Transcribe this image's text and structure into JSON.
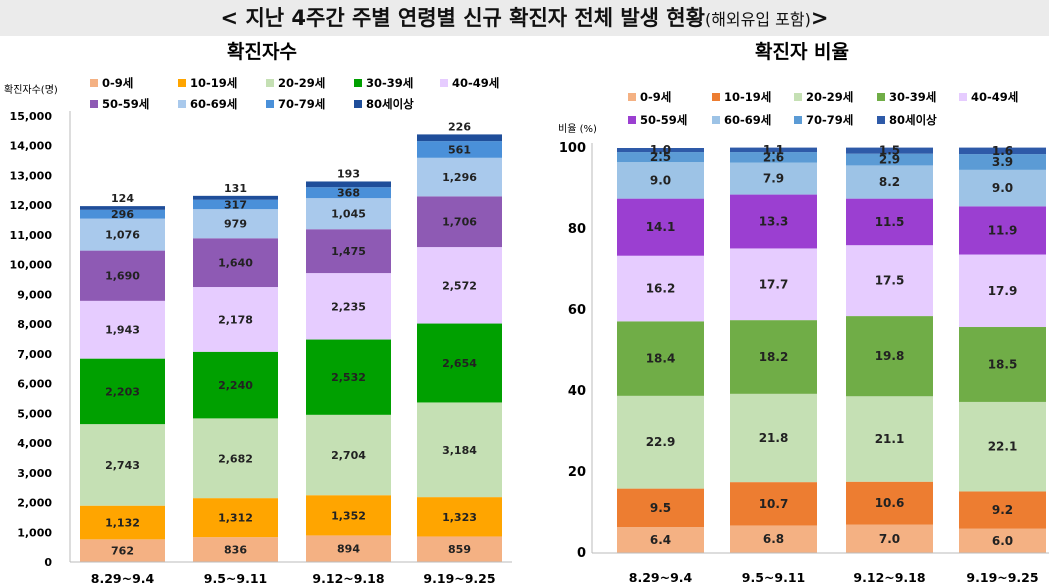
{
  "page_title": {
    "main": "< 지난 4주간 주별 연령별 신규 확진자 전체 발생 현황",
    "sub": "(해외유입 포함)",
    "suffix": ">"
  },
  "chart_data": [
    {
      "type": "bar",
      "stacked": true,
      "title": "확진자수",
      "ylabel": "확진자수(명)",
      "xlabel": "",
      "ylim": [
        0,
        15000
      ],
      "yticks": [
        0,
        1000,
        2000,
        3000,
        4000,
        5000,
        6000,
        7000,
        8000,
        9000,
        10000,
        11000,
        12000,
        13000,
        14000,
        15000
      ],
      "ytick_labels": [
        "0",
        "1,000",
        "2,000",
        "3,000",
        "4,000",
        "5,000",
        "6,000",
        "7,000",
        "8,000",
        "9,000",
        "10,000",
        "11,000",
        "12,000",
        "13,000",
        "14,000",
        "15,000"
      ],
      "grid": false,
      "legend_position": "top",
      "categories": [
        "8.29~9.4",
        "9.5~9.11",
        "9.12~9.18",
        "9.19~9.25"
      ],
      "series": [
        {
          "name": "0-9세",
          "color": "#f4b183",
          "values": [
            762,
            836,
            894,
            859
          ],
          "labels": [
            "762",
            "836",
            "894",
            "859"
          ]
        },
        {
          "name": "10-19세",
          "color": "#ffa500",
          "values": [
            1132,
            1312,
            1352,
            1323
          ],
          "labels": [
            "1,132",
            "1,312",
            "1,352",
            "1,323"
          ]
        },
        {
          "name": "20-29세",
          "color": "#c5e0b4",
          "values": [
            2743,
            2682,
            2704,
            3184
          ],
          "labels": [
            "2,743",
            "2,682",
            "2,704",
            "3,184"
          ]
        },
        {
          "name": "30-39세",
          "color": "#00a000",
          "values": [
            2203,
            2240,
            2532,
            2654
          ],
          "labels": [
            "2,203",
            "2,240",
            "2,532",
            "2,654"
          ]
        },
        {
          "name": "40-49세",
          "color": "#e6ccff",
          "values": [
            1943,
            2178,
            2235,
            2572
          ],
          "labels": [
            "1,943",
            "2,178",
            "2,235",
            "2,572"
          ]
        },
        {
          "name": "50-59세",
          "color": "#8e5ab4",
          "values": [
            1690,
            1640,
            1475,
            1706
          ],
          "labels": [
            "1,690",
            "1,640",
            "1,475",
            "1,706"
          ]
        },
        {
          "name": "60-69세",
          "color": "#a9c9ec",
          "values": [
            1076,
            979,
            1045,
            1296
          ],
          "labels": [
            "1,076",
            "979",
            "1,045",
            "1,296"
          ]
        },
        {
          "name": "70-79세",
          "color": "#4a90d9",
          "values": [
            296,
            317,
            368,
            561
          ],
          "labels": [
            "296",
            "317",
            "368",
            "561"
          ]
        },
        {
          "name": "80세이상",
          "color": "#1f4e9a",
          "values": [
            124,
            131,
            193,
            226
          ],
          "labels": [
            "124",
            "131",
            "193",
            "226"
          ]
        }
      ]
    },
    {
      "type": "bar",
      "stacked": true,
      "title": "확진자 비율",
      "ylabel": "비율 (%)",
      "xlabel": "",
      "ylim": [
        0,
        100
      ],
      "yticks": [
        0,
        20,
        40,
        60,
        80,
        100
      ],
      "ytick_labels": [
        "0",
        "20",
        "40",
        "60",
        "80",
        "100"
      ],
      "grid": false,
      "legend_position": "top",
      "categories": [
        "8.29~9.4",
        "9.5~9.11",
        "9.12~9.18",
        "9.19~9.25"
      ],
      "series": [
        {
          "name": "0-9세",
          "color": "#f4b183",
          "values": [
            6.4,
            6.8,
            7.0,
            6.0
          ],
          "labels": [
            "6.4",
            "6.8",
            "7.0",
            "6.0"
          ]
        },
        {
          "name": "10-19세",
          "color": "#ed7d31",
          "values": [
            9.5,
            10.7,
            10.6,
            9.2
          ],
          "labels": [
            "9.5",
            "10.7",
            "10.6",
            "9.2"
          ]
        },
        {
          "name": "20-29세",
          "color": "#c5e0b4",
          "values": [
            22.9,
            21.8,
            21.1,
            22.1
          ],
          "labels": [
            "22.9",
            "21.8",
            "21.1",
            "22.1"
          ]
        },
        {
          "name": "30-39세",
          "color": "#70ad47",
          "values": [
            18.4,
            18.2,
            19.8,
            18.5
          ],
          "labels": [
            "18.4",
            "18.2",
            "19.8",
            "18.5"
          ]
        },
        {
          "name": "40-49세",
          "color": "#e6ccff",
          "values": [
            16.2,
            17.7,
            17.5,
            17.9
          ],
          "labels": [
            "16.2",
            "17.7",
            "17.5",
            "17.9"
          ]
        },
        {
          "name": "50-59세",
          "color": "#9b3fd1",
          "values": [
            14.1,
            13.3,
            11.5,
            11.9
          ],
          "labels": [
            "14.1",
            "13.3",
            "11.5",
            "11.9"
          ]
        },
        {
          "name": "60-69세",
          "color": "#9dc3e6",
          "values": [
            9.0,
            7.9,
            8.2,
            9.0
          ],
          "labels": [
            "9.0",
            "7.9",
            "8.2",
            "9.0"
          ]
        },
        {
          "name": "70-79세",
          "color": "#5b9bd5",
          "values": [
            2.5,
            2.6,
            2.9,
            3.9
          ],
          "labels": [
            "2.5",
            "2.6",
            "2.9",
            "3.9"
          ]
        },
        {
          "name": "80세이상",
          "color": "#2e5aa8",
          "values": [
            1.0,
            1.1,
            1.5,
            1.6
          ],
          "labels": [
            "1.0",
            "1.1",
            "1.5",
            "1.6"
          ]
        }
      ]
    }
  ]
}
